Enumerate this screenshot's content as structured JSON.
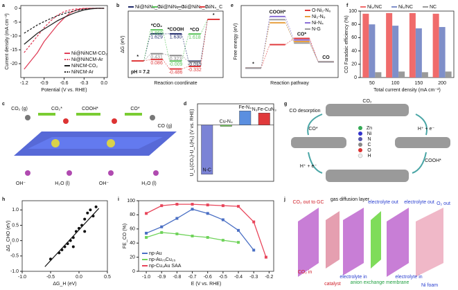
{
  "chart_data": [
    {
      "panel": "a",
      "type": "line",
      "xlabel": "Potential (V vs. RHE)",
      "ylabel": "Current density (mA cm⁻²)",
      "x": [
        -1.2,
        -1.1,
        -1.0,
        -0.9,
        -0.8,
        -0.7,
        -0.6,
        -0.5,
        -0.4,
        -0.3,
        -0.2,
        -0.1,
        0
      ],
      "xlim": [
        -1.25,
        0.05
      ],
      "xticks": [
        -1.2,
        -0.9,
        -0.6,
        -0.3,
        {
          "value": 0,
          "label": "0.0"
        }
      ],
      "ylim": [
        -25,
        1
      ],
      "yticks": [
        -20,
        -15,
        -10,
        -5,
        0
      ],
      "legend": "lower right",
      "series": [
        {
          "name": "Ni@NiNCM-CO₂",
          "color": "#e0405a",
          "dashed": false,
          "values": [
            -22,
            -19,
            -16,
            -12,
            -9,
            -6,
            -3.5,
            -1.5,
            -0.5,
            -0.1,
            0,
            0,
            0
          ]
        },
        {
          "name": "Ni@NiNCM-Ar",
          "color": "#e0405a",
          "dashed": true,
          "values": [
            -16,
            -13,
            -10,
            -7,
            -4.5,
            -2.5,
            -1.2,
            -0.5,
            -0.2,
            0,
            0,
            0,
            0
          ]
        },
        {
          "name": "NiNCM-CO₂",
          "color": "#222222",
          "dashed": false,
          "values": [
            -13,
            -11,
            -9,
            -7.5,
            -6,
            -4.5,
            -3.3,
            -2.2,
            -1.3,
            -0.6,
            -0.2,
            0,
            0
          ]
        },
        {
          "name": "NiNCM-Ar",
          "color": "#222222",
          "dashed": true,
          "values": [
            -9,
            -7.5,
            -6,
            -4.8,
            -3.7,
            -2.7,
            -1.9,
            -1.2,
            -0.7,
            -0.3,
            -0.1,
            0,
            0
          ]
        }
      ]
    },
    {
      "panel": "b",
      "type": "energy",
      "xlabel": "Reaction coordinate",
      "ylabel": "ΔG (eV)",
      "annotation": "pH = 7.2",
      "categories": [
        "*",
        "*CO₂",
        "*COOH",
        "*CO",
        "*"
      ],
      "ylim": [
        -1,
        3
      ],
      "legend": "top",
      "series": [
        {
          "name": "Ni@NiN₄_C",
          "color": "#1f2a6b",
          "values": [
            0,
            1.629,
            1.63,
            -0.015,
            2.5
          ],
          "value_labels": [
            null,
            "1.629",
            "1.630",
            "-0.015",
            null
          ]
        },
        {
          "name": "Ni@NiN₃_C",
          "color": "#59c45a",
          "values": [
            0,
            1.869,
            -0.009,
            1.618,
            2.5
          ],
          "value_labels": [
            null,
            "1.869",
            "-0.009",
            "1.618",
            null
          ]
        },
        {
          "name": "Ni@NiN₂_C",
          "color": "#8a8a8a",
          "values": [
            0,
            0.431,
            0.323,
            -0.052,
            2.5
          ],
          "value_labels": [
            null,
            "0.431",
            "0.323",
            "-0.052",
            null
          ]
        },
        {
          "name": "NiN₄_C",
          "color": "#e0393b",
          "values": [
            0,
            0.086,
            -0.486,
            -0.332,
            2.5
          ],
          "value_labels": [
            null,
            "0.086",
            "-0.486",
            "-0.332",
            null
          ]
        }
      ]
    },
    {
      "panel": "e",
      "type": "energy",
      "xlabel": "Reaction pathway",
      "ylabel": "Free energy (eV)",
      "categories": [
        "*",
        "COOH*",
        "CO*",
        "CO"
      ],
      "ylim": [
        -0.3,
        2.0
      ],
      "legend": "upper right",
      "series": [
        {
          "name": "O-Ni₂-N₆",
          "color": "#e0393b",
          "values": [
            0,
            0.75,
            0.95,
            0.2
          ]
        },
        {
          "name": "Ni₂-N₆",
          "color": "#e8a040",
          "values": [
            0,
            1.45,
            0.85,
            0.2
          ]
        },
        {
          "name": "Ni-N₄",
          "color": "#8a6fd6",
          "values": [
            0,
            1.65,
            0.9,
            0.2
          ]
        },
        {
          "name": "N-G",
          "color": "#9a9a9a",
          "values": [
            0,
            1.55,
            0.8,
            0.2
          ]
        }
      ]
    },
    {
      "panel": "f",
      "type": "bar",
      "xlabel": "Total current density (mA cm⁻²)",
      "ylabel": "CO Faradaic efficiency (%)",
      "categories": [
        "50",
        "100",
        "150",
        "200"
      ],
      "ylim": [
        0,
        100
      ],
      "yticks": [
        0,
        20,
        40,
        60,
        80,
        100
      ],
      "legend": "top",
      "series": [
        {
          "name": "Ni₂/NC",
          "color": "#f06b6b",
          "values": [
            96,
            97,
            97,
            96
          ]
        },
        {
          "name": "Ni₁/NC",
          "color": "#7f8fc9",
          "values": [
            80,
            78,
            74,
            76
          ]
        },
        {
          "name": "NC",
          "color": "#9a9a9a",
          "values": [
            8,
            9,
            8,
            9
          ]
        }
      ]
    },
    {
      "panel": "d",
      "type": "bar",
      "ylabel": "U_L(CO₂)-U_L(H₂) (V vs. RHE)",
      "categories": [
        "N-C",
        "Cu-N₄",
        "Fe-N₄",
        "N₃Fe-CuN₃"
      ],
      "values": [
        -3.5,
        -0.1,
        1.0,
        0.85
      ],
      "colors": [
        "#7b83d6",
        "#7fd36a",
        "#5b8fe0",
        "#e0393b"
      ],
      "ylim": [
        -4,
        1.5
      ]
    },
    {
      "panel": "h",
      "type": "scatter",
      "xlabel": "ΔG_H (eV)",
      "ylabel": "ΔG_CHO (eV)",
      "color": "#111111",
      "xlim": [
        -1.0,
        0.5
      ],
      "xticks": [
        {
          "value": -1,
          "label": "-1.0"
        },
        -0.5,
        {
          "value": 0,
          "label": "0.0"
        },
        0.5
      ],
      "ylim": [
        -1.0,
        1.3
      ],
      "yticks": [
        {
          "value": -1,
          "label": "-1.0"
        },
        -0.5,
        {
          "value": 0,
          "label": "0.0"
        },
        0.5,
        {
          "value": 1,
          "label": "1.0"
        }
      ],
      "x": [
        -0.5,
        -0.35,
        -0.3,
        -0.25,
        -0.2,
        -0.15,
        -0.1,
        -0.1,
        -0.05,
        0.0,
        0.05,
        0.1,
        0.1,
        0.15,
        0.2,
        0.25,
        0.3
      ],
      "values": [
        -0.6,
        -0.4,
        -0.3,
        -0.2,
        -0.1,
        0.0,
        0.1,
        -0.2,
        0.3,
        0.4,
        0.5,
        0.3,
        0.7,
        0.9,
        1.0,
        0.8,
        1.1
      ],
      "fit": {
        "x": [
          -0.6,
          0.35
        ],
        "values": [
          -0.85,
          1.05
        ]
      }
    },
    {
      "panel": "i",
      "type": "line",
      "markers": true,
      "xlabel": "E (V vs. RHE)",
      "ylabel": "FE_CO (%)",
      "xlim": [
        -1.05,
        -0.17
      ],
      "xticks": [
        {
          "value": -1,
          "label": "-1.0"
        },
        -0.9,
        -0.8,
        -0.7,
        -0.6,
        -0.5,
        -0.4,
        -0.3,
        -0.2
      ],
      "ylim": [
        0,
        100
      ],
      "yticks": [
        0,
        20,
        40,
        60,
        80,
        100
      ],
      "legend": "lower left",
      "series": [
        {
          "name": "np-Au",
          "color": "#4a6fc4",
          "x": [
            -1.0,
            -0.9,
            -0.8,
            -0.7,
            -0.6,
            -0.5,
            -0.4,
            -0.3
          ],
          "values": [
            54,
            63,
            75,
            88,
            82,
            73,
            58,
            30
          ]
        },
        {
          "name": "np-Au₇₅Cu₂₅",
          "color": "#6fd35a",
          "x": [
            -1.0,
            -0.9,
            -0.8,
            -0.7,
            -0.6,
            -0.5,
            -0.4
          ],
          "values": [
            48,
            55,
            53,
            50,
            48,
            44,
            41
          ]
        },
        {
          "name": "np-Cu₃Au SAA",
          "color": "#e8455a",
          "x": [
            -1.0,
            -0.9,
            -0.8,
            -0.7,
            -0.6,
            -0.5,
            -0.4,
            -0.3,
            -0.22
          ],
          "values": [
            82,
            93,
            95,
            95,
            94,
            93,
            92,
            70,
            20
          ]
        }
      ]
    }
  ],
  "diagram_c": {
    "panel": "c",
    "labels": [
      "CO₂ (g)",
      "CO₂*",
      "COOH*",
      "CO*",
      "CO (g)",
      "OH⁻",
      "H₂O (l)",
      "OH⁻",
      "H₂O (l)"
    ]
  },
  "diagram_g": {
    "panel": "g",
    "labels": [
      "CO₂",
      "CO desorption",
      "CO*",
      "COOH*",
      "H⁺ + e⁻",
      "H⁺ + e⁻",
      "Zn",
      "Ni",
      "N",
      "C",
      "O",
      "H"
    ]
  },
  "diagram_j": {
    "panel": "j",
    "labels": [
      "CO₂ out to GC",
      "gas diffusion layer",
      "electrolyte out",
      "electrolyte out",
      "O₂ out",
      "CO₂ in",
      "catalyst",
      "electrolyte in",
      "anion exchange membrane",
      "electrolyte in",
      "Ni foam"
    ]
  }
}
